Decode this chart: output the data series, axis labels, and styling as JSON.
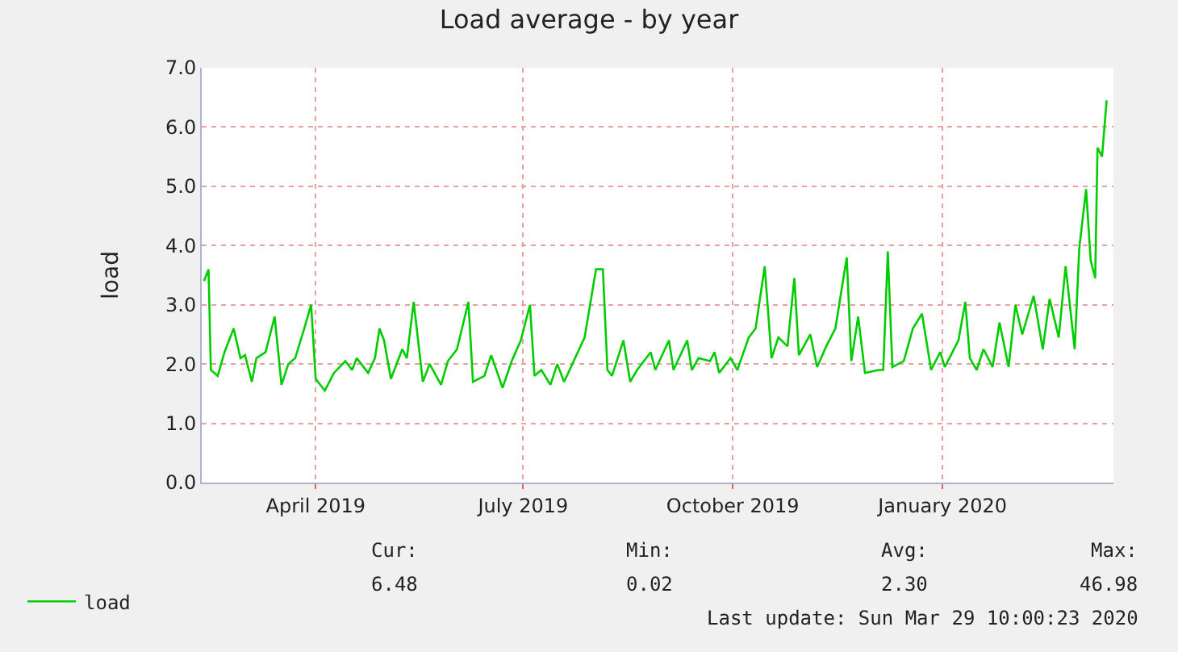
{
  "chart_data": {
    "type": "line",
    "title": "Load average - by year",
    "ylabel": "load",
    "x": [
      "2019-02-25",
      "2019-02-27",
      "2019-02-28",
      "2019-03-03",
      "2019-03-06",
      "2019-03-10",
      "2019-03-13",
      "2019-03-15",
      "2019-03-18",
      "2019-03-20",
      "2019-03-24",
      "2019-03-28",
      "2019-03-31",
      "2019-04-03",
      "2019-04-06",
      "2019-04-10",
      "2019-04-13",
      "2019-04-15",
      "2019-04-19",
      "2019-04-23",
      "2019-04-28",
      "2019-05-01",
      "2019-05-03",
      "2019-05-08",
      "2019-05-11",
      "2019-05-13",
      "2019-05-15",
      "2019-05-18",
      "2019-05-23",
      "2019-05-25",
      "2019-05-28",
      "2019-06-01",
      "2019-06-04",
      "2019-06-09",
      "2019-06-12",
      "2019-06-16",
      "2019-06-21",
      "2019-06-23",
      "2019-06-28",
      "2019-07-01",
      "2019-07-06",
      "2019-07-10",
      "2019-07-14",
      "2019-07-18",
      "2019-07-20",
      "2019-07-23",
      "2019-07-27",
      "2019-07-30",
      "2019-08-02",
      "2019-08-05",
      "2019-08-11",
      "2019-08-16",
      "2019-08-19",
      "2019-08-21",
      "2019-08-23",
      "2019-08-28",
      "2019-08-31",
      "2019-09-03",
      "2019-09-09",
      "2019-09-11",
      "2019-09-17",
      "2019-09-19",
      "2019-09-25",
      "2019-09-27",
      "2019-09-30",
      "2019-10-05",
      "2019-10-07",
      "2019-10-09",
      "2019-10-14",
      "2019-10-17",
      "2019-10-22",
      "2019-10-25",
      "2019-10-29",
      "2019-11-01",
      "2019-11-04",
      "2019-11-08",
      "2019-11-11",
      "2019-11-13",
      "2019-11-18",
      "2019-11-21",
      "2019-11-25",
      "2019-11-29",
      "2019-12-04",
      "2019-12-06",
      "2019-12-09",
      "2019-12-12",
      "2019-12-18",
      "2019-12-20",
      "2019-12-22",
      "2019-12-24",
      "2019-12-29",
      "2020-01-02",
      "2020-01-06",
      "2020-01-10",
      "2020-01-14",
      "2020-01-16",
      "2020-01-22",
      "2020-01-25",
      "2020-01-27",
      "2020-01-30",
      "2020-02-02",
      "2020-02-06",
      "2020-02-09",
      "2020-02-13",
      "2020-02-16",
      "2020-02-19",
      "2020-02-24",
      "2020-02-28",
      "2020-03-02",
      "2020-03-06",
      "2020-03-09",
      "2020-03-13",
      "2020-03-15",
      "2020-03-18",
      "2020-03-20",
      "2020-03-22",
      "2020-03-23",
      "2020-03-25",
      "2020-03-27"
    ],
    "series": [
      {
        "name": "load",
        "color": "#00cc00",
        "values": [
          3.4,
          3.6,
          1.9,
          1.8,
          2.2,
          2.6,
          2.1,
          2.15,
          1.7,
          2.1,
          2.2,
          2.8,
          1.65,
          2.0,
          2.1,
          2.6,
          3.0,
          1.75,
          1.55,
          1.85,
          2.05,
          1.9,
          2.1,
          1.85,
          2.1,
          2.6,
          2.4,
          1.75,
          2.25,
          2.1,
          3.05,
          1.7,
          2.0,
          1.65,
          2.05,
          2.25,
          3.05,
          1.7,
          1.8,
          2.15,
          1.6,
          2.05,
          2.4,
          3.0,
          1.8,
          1.9,
          1.65,
          2.0,
          1.7,
          1.95,
          2.45,
          3.6,
          3.6,
          1.9,
          1.8,
          2.4,
          1.7,
          1.9,
          2.2,
          1.9,
          2.4,
          1.9,
          2.4,
          1.9,
          2.1,
          2.05,
          2.2,
          1.85,
          2.1,
          1.9,
          2.45,
          2.6,
          3.65,
          2.1,
          2.45,
          2.3,
          3.45,
          2.15,
          2.5,
          1.95,
          2.3,
          2.6,
          3.8,
          2.05,
          2.8,
          1.85,
          1.9,
          1.9,
          3.9,
          1.95,
          2.05,
          2.6,
          2.85,
          1.9,
          2.2,
          1.95,
          2.4,
          3.05,
          2.1,
          1.9,
          2.25,
          1.95,
          2.7,
          1.95,
          3.0,
          2.5,
          3.15,
          2.25,
          3.1,
          2.45,
          3.65,
          2.25,
          3.95,
          4.95,
          3.75,
          3.45,
          5.65,
          5.5,
          6.45
        ]
      }
    ],
    "xlim": [
      "2019-02-24",
      "2020-03-30"
    ],
    "xticks": [
      {
        "value": "2019-04-15",
        "label": "April 2019"
      },
      {
        "value": "2019-07-15",
        "label": "July 2019"
      },
      {
        "value": "2019-10-15",
        "label": "October 2019"
      },
      {
        "value": "2020-01-15",
        "label": "January 2020"
      }
    ],
    "ylim": [
      0,
      7
    ],
    "yticks": [
      {
        "value": 0,
        "label": "0.0"
      },
      {
        "value": 1,
        "label": "1.0"
      },
      {
        "value": 2,
        "label": "2.0"
      },
      {
        "value": 3,
        "label": "3.0"
      },
      {
        "value": 4,
        "label": "4.0"
      },
      {
        "value": 5,
        "label": "5.0"
      },
      {
        "value": 6,
        "label": "6.0"
      },
      {
        "value": 7,
        "label": "7.0"
      }
    ],
    "grid": true,
    "legend": "bottom left",
    "marker": "none",
    "line_style": "solid",
    "annotations": [
      "Cur:",
      "Min:",
      "Avg:",
      "Max:",
      "6.48",
      "0.02",
      "2.30",
      "46.98",
      "Last update: Sun Mar 29 10:00:23 2020"
    ]
  }
}
